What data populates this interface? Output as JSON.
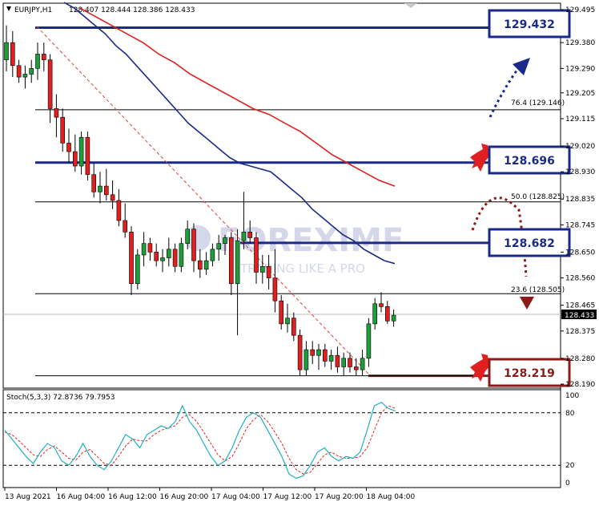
{
  "header": {
    "symbol": "EURJPY,H1",
    "ohlc": "128.407 128.444 128.386 128.433"
  },
  "watermark": {
    "text": "FOREXIMF",
    "tagline": "TRADING LIKE A PRO"
  },
  "price_axis": {
    "labels": [
      "129.495",
      "129.380",
      "129.290",
      "129.205",
      "129.115",
      "129.020",
      "128.930",
      "128.835",
      "128.745",
      "128.650",
      "128.560",
      "128.465",
      "128.375",
      "128.280",
      "128.190"
    ],
    "current_label": "128.433"
  },
  "levels": {
    "fib76": "76.4 (129.146)",
    "fib50": "50.0 (128.825)",
    "fib23": "23.6 (128.505)"
  },
  "boxes": {
    "b1": "129.432",
    "b2": "128.696",
    "b3": "128.682",
    "b4": "128.219"
  },
  "stoch": {
    "label": "Stoch(5,3,3) 72.8736 79.7953",
    "axis_labels": [
      "100",
      "80",
      "20",
      "0"
    ]
  },
  "time_axis": [
    "13 Aug 2021",
    "16 Aug 04:00",
    "16 Aug 12:00",
    "16 Aug 20:00",
    "17 Aug 04:00",
    "17 Aug 12:00",
    "17 Aug 20:00",
    "18 Aug 04:00"
  ],
  "colors": {
    "bull": "#1e9e3a",
    "bear": "#e02020",
    "ma_fast": "#1a2a8a",
    "ma_slow": "#e02020",
    "box_blue": "#1a2a8a",
    "box_red": "#8b1a1a"
  },
  "chart_data": {
    "type": "candlestick",
    "symbol": "EURJPY",
    "timeframe": "H1",
    "ylim": [
      128.19,
      129.495
    ],
    "candles": [
      {
        "o": 129.32,
        "h": 129.44,
        "l": 129.28,
        "c": 129.38
      },
      {
        "o": 129.38,
        "h": 129.42,
        "l": 129.26,
        "c": 129.3
      },
      {
        "o": 129.3,
        "h": 129.32,
        "l": 129.24,
        "c": 129.26
      },
      {
        "o": 129.26,
        "h": 129.3,
        "l": 129.22,
        "c": 129.27
      },
      {
        "o": 129.27,
        "h": 129.32,
        "l": 129.24,
        "c": 129.29
      },
      {
        "o": 129.29,
        "h": 129.38,
        "l": 129.25,
        "c": 129.34
      },
      {
        "o": 129.34,
        "h": 129.38,
        "l": 129.28,
        "c": 129.32
      },
      {
        "o": 129.32,
        "h": 129.34,
        "l": 129.1,
        "c": 129.15
      },
      {
        "o": 129.15,
        "h": 129.2,
        "l": 129.05,
        "c": 129.12
      },
      {
        "o": 129.12,
        "h": 129.15,
        "l": 129.0,
        "c": 129.03
      },
      {
        "o": 129.03,
        "h": 129.08,
        "l": 128.96,
        "c": 129.0
      },
      {
        "o": 129.0,
        "h": 129.06,
        "l": 128.93,
        "c": 128.95
      },
      {
        "o": 128.95,
        "h": 129.07,
        "l": 128.92,
        "c": 129.05
      },
      {
        "o": 129.05,
        "h": 129.07,
        "l": 128.9,
        "c": 128.92
      },
      {
        "o": 128.92,
        "h": 128.96,
        "l": 128.84,
        "c": 128.86
      },
      {
        "o": 128.86,
        "h": 128.93,
        "l": 128.82,
        "c": 128.88
      },
      {
        "o": 128.88,
        "h": 128.94,
        "l": 128.83,
        "c": 128.85
      },
      {
        "o": 128.85,
        "h": 128.9,
        "l": 128.8,
        "c": 128.83
      },
      {
        "o": 128.83,
        "h": 128.87,
        "l": 128.74,
        "c": 128.76
      },
      {
        "o": 128.76,
        "h": 128.82,
        "l": 128.7,
        "c": 128.72
      },
      {
        "o": 128.72,
        "h": 128.74,
        "l": 128.5,
        "c": 128.54
      },
      {
        "o": 128.54,
        "h": 128.66,
        "l": 128.52,
        "c": 128.64
      },
      {
        "o": 128.64,
        "h": 128.72,
        "l": 128.6,
        "c": 128.68
      },
      {
        "o": 128.68,
        "h": 128.7,
        "l": 128.62,
        "c": 128.65
      },
      {
        "o": 128.65,
        "h": 128.68,
        "l": 128.6,
        "c": 128.62
      },
      {
        "o": 128.62,
        "h": 128.66,
        "l": 128.58,
        "c": 128.63
      },
      {
        "o": 128.63,
        "h": 128.7,
        "l": 128.6,
        "c": 128.66
      },
      {
        "o": 128.66,
        "h": 128.68,
        "l": 128.58,
        "c": 128.6
      },
      {
        "o": 128.6,
        "h": 128.7,
        "l": 128.58,
        "c": 128.68
      },
      {
        "o": 128.68,
        "h": 128.76,
        "l": 128.66,
        "c": 128.73
      },
      {
        "o": 128.73,
        "h": 128.75,
        "l": 128.58,
        "c": 128.62
      },
      {
        "o": 128.62,
        "h": 128.66,
        "l": 128.56,
        "c": 128.59
      },
      {
        "o": 128.59,
        "h": 128.65,
        "l": 128.57,
        "c": 128.62
      },
      {
        "o": 128.62,
        "h": 128.68,
        "l": 128.6,
        "c": 128.66
      },
      {
        "o": 128.66,
        "h": 128.71,
        "l": 128.62,
        "c": 128.68
      },
      {
        "o": 128.68,
        "h": 128.71,
        "l": 128.64,
        "c": 128.7
      },
      {
        "o": 128.7,
        "h": 128.72,
        "l": 128.5,
        "c": 128.54
      },
      {
        "o": 128.54,
        "h": 128.73,
        "l": 128.36,
        "c": 128.69
      },
      {
        "o": 128.69,
        "h": 128.86,
        "l": 128.66,
        "c": 128.72
      },
      {
        "o": 128.72,
        "h": 128.76,
        "l": 128.68,
        "c": 128.7
      },
      {
        "o": 128.7,
        "h": 128.72,
        "l": 128.54,
        "c": 128.58
      },
      {
        "o": 128.58,
        "h": 128.64,
        "l": 128.54,
        "c": 128.6
      },
      {
        "o": 128.6,
        "h": 128.64,
        "l": 128.52,
        "c": 128.56
      },
      {
        "o": 128.56,
        "h": 128.66,
        "l": 128.44,
        "c": 128.48
      },
      {
        "o": 128.48,
        "h": 128.5,
        "l": 128.38,
        "c": 128.4
      },
      {
        "o": 128.4,
        "h": 128.47,
        "l": 128.37,
        "c": 128.42
      },
      {
        "o": 128.42,
        "h": 128.44,
        "l": 128.34,
        "c": 128.36
      },
      {
        "o": 128.36,
        "h": 128.38,
        "l": 128.22,
        "c": 128.24
      },
      {
        "o": 128.24,
        "h": 128.34,
        "l": 128.22,
        "c": 128.31
      },
      {
        "o": 128.31,
        "h": 128.34,
        "l": 128.26,
        "c": 128.29
      },
      {
        "o": 128.29,
        "h": 128.33,
        "l": 128.24,
        "c": 128.31
      },
      {
        "o": 128.31,
        "h": 128.33,
        "l": 128.25,
        "c": 128.27
      },
      {
        "o": 128.27,
        "h": 128.31,
        "l": 128.24,
        "c": 128.29
      },
      {
        "o": 128.29,
        "h": 128.32,
        "l": 128.23,
        "c": 128.25
      },
      {
        "o": 128.25,
        "h": 128.3,
        "l": 128.22,
        "c": 128.28
      },
      {
        "o": 128.28,
        "h": 128.3,
        "l": 128.23,
        "c": 128.25
      },
      {
        "o": 128.25,
        "h": 128.28,
        "l": 128.22,
        "c": 128.24
      },
      {
        "o": 128.24,
        "h": 128.31,
        "l": 128.22,
        "c": 128.28
      },
      {
        "o": 128.28,
        "h": 128.42,
        "l": 128.25,
        "c": 128.4
      },
      {
        "o": 128.4,
        "h": 128.49,
        "l": 128.38,
        "c": 128.47
      },
      {
        "o": 128.47,
        "h": 128.51,
        "l": 128.44,
        "c": 128.46
      },
      {
        "o": 128.46,
        "h": 128.48,
        "l": 128.4,
        "c": 128.41
      },
      {
        "o": 128.41,
        "h": 128.45,
        "l": 128.39,
        "c": 128.43
      }
    ],
    "ma_fast": [
      129.52,
      129.5,
      129.47,
      129.44,
      129.41,
      129.37,
      129.34,
      129.3,
      129.26,
      129.22,
      129.18,
      129.14,
      129.1,
      129.07,
      129.04,
      129.01,
      128.98,
      128.96,
      128.95,
      128.94,
      128.93,
      128.9,
      128.87,
      128.84,
      128.8,
      128.77,
      128.74,
      128.71,
      128.69,
      128.66,
      128.64,
      128.62,
      128.61
    ],
    "ma_slow": [
      129.5,
      129.47,
      129.44,
      129.41,
      129.38,
      129.34,
      129.31,
      129.27,
      129.24,
      129.21,
      129.18,
      129.15,
      129.13,
      129.1,
      129.07,
      129.03,
      128.99,
      128.96,
      128.93,
      128.9,
      128.88
    ],
    "horizontal_levels": [
      129.432,
      129.146,
      128.962,
      128.825,
      128.682,
      128.505,
      128.219
    ],
    "fib_levels": [
      {
        "label": "76.4",
        "value": 129.146
      },
      {
        "label": "50.0",
        "value": 128.825
      },
      {
        "label": "23.6",
        "value": 128.505
      }
    ],
    "stoch_k": [
      60,
      50,
      40,
      30,
      22,
      35,
      45,
      40,
      25,
      20,
      30,
      45,
      30,
      20,
      15,
      25,
      40,
      55,
      50,
      40,
      55,
      60,
      65,
      62,
      70,
      88,
      70,
      60,
      45,
      30,
      20,
      25,
      40,
      60,
      75,
      80,
      75,
      60,
      45,
      30,
      10,
      5,
      8,
      20,
      35,
      40,
      30,
      25,
      30,
      28,
      35,
      60,
      88,
      92,
      85,
      82
    ],
    "stoch_d": [
      58,
      55,
      48,
      40,
      32,
      30,
      38,
      42,
      35,
      28,
      26,
      35,
      38,
      30,
      22,
      20,
      30,
      42,
      50,
      48,
      48,
      55,
      60,
      63,
      65,
      75,
      78,
      70,
      58,
      45,
      32,
      25,
      30,
      45,
      62,
      72,
      78,
      70,
      58,
      45,
      28,
      15,
      10,
      12,
      22,
      32,
      35,
      30,
      28,
      28,
      30,
      40,
      60,
      80,
      88,
      85
    ],
    "stoch_levels": [
      80,
      20
    ]
  }
}
